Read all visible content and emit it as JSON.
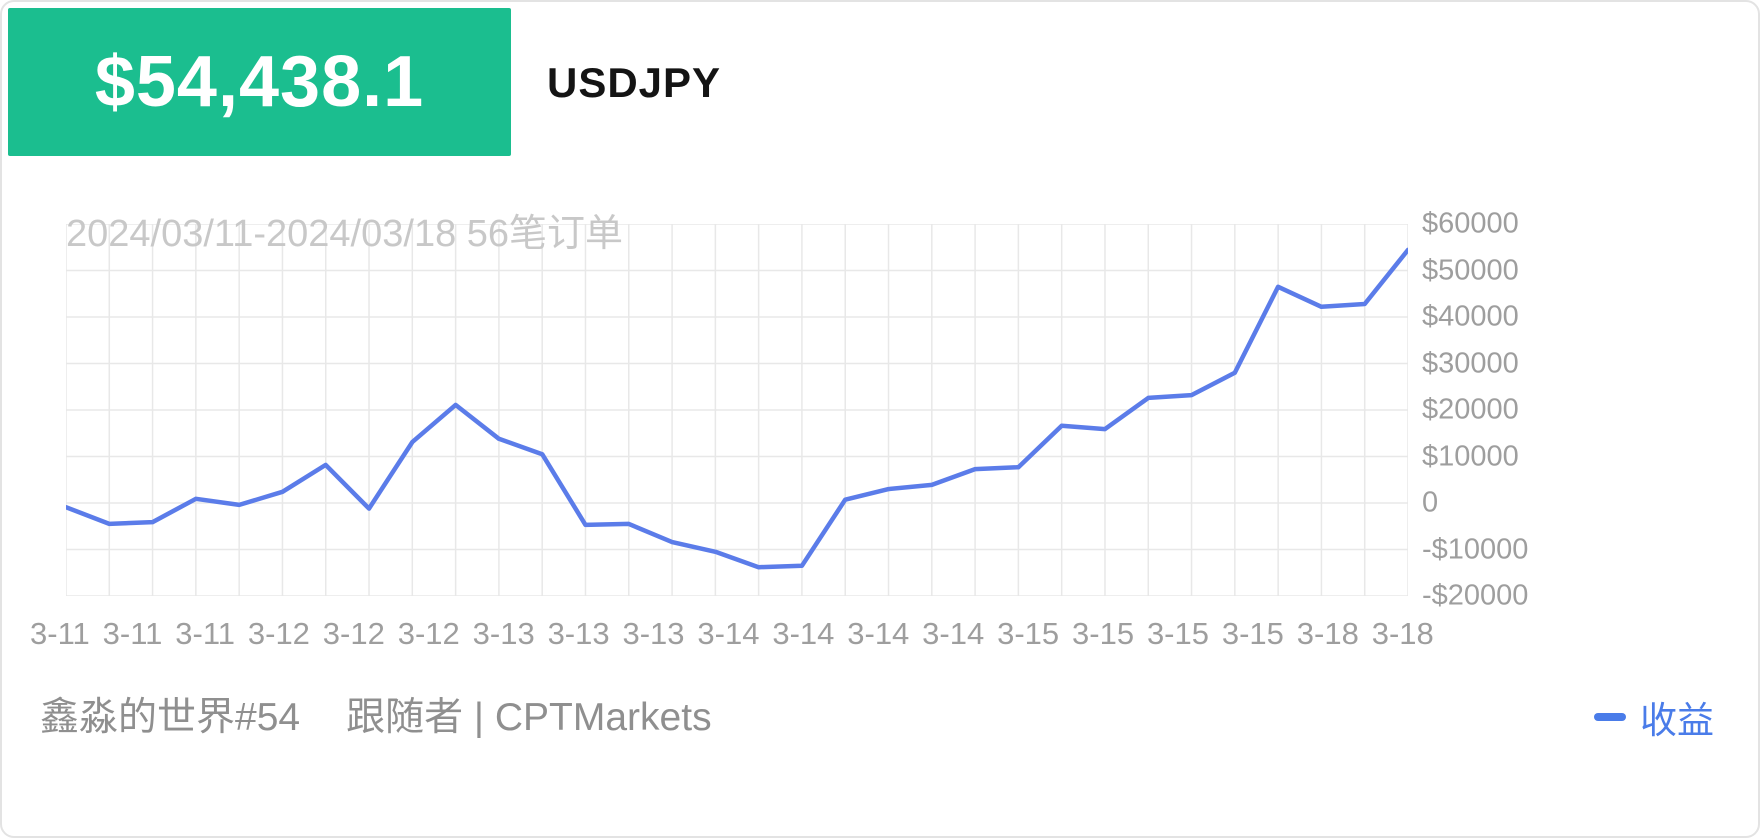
{
  "header": {
    "profit": "$54,438.1",
    "symbol": "USDJPY",
    "badge_color": "#1bbe8f"
  },
  "chart_data": {
    "type": "line",
    "title": "2024/03/11-2024/03/18 56笔订单",
    "xlabel": "",
    "ylabel": "",
    "ylim": [
      -20000,
      60000
    ],
    "grid": true,
    "legend_position": "bottom-right",
    "grid_color": "#e8e8e8",
    "x_labels": [
      "3-11",
      "3-11",
      "3-11",
      "3-12",
      "3-12",
      "3-12",
      "3-13",
      "3-13",
      "3-13",
      "3-14",
      "3-14",
      "3-14",
      "3-14",
      "3-15",
      "3-15",
      "3-15",
      "3-15",
      "3-18",
      "3-18"
    ],
    "y_ticks": [
      "$60000",
      "$50000",
      "$40000",
      "$30000",
      "$20000",
      "$10000",
      "0",
      "-$10000",
      "-$20000"
    ],
    "series": [
      {
        "name": "收益",
        "color": "#5b7ce9",
        "values": [
          -900,
          -4500,
          -4100,
          900,
          -400,
          2400,
          8200,
          -1200,
          13100,
          21100,
          13800,
          10500,
          -4700,
          -4500,
          -8400,
          -10500,
          -13800,
          -13500,
          700,
          3000,
          3900,
          7300,
          7700,
          16600,
          15900,
          22600,
          23200,
          28000,
          46500,
          42200,
          42800,
          54438.1
        ]
      }
    ]
  },
  "footer": {
    "account": "鑫淼的世界#54",
    "desc": "跟随者 | CPTMarkets"
  },
  "legend": {
    "color": "#4a7ce9"
  }
}
